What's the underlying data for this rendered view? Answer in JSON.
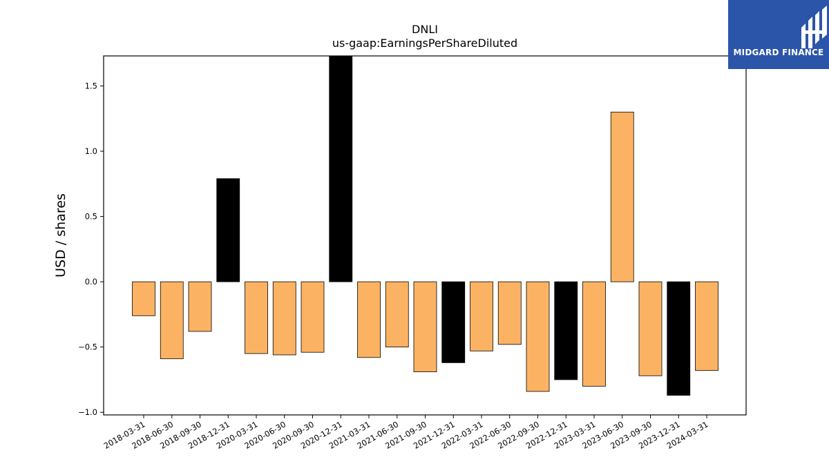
{
  "logo": {
    "text": "MIDGARD FINANCE",
    "bg_color": "#2b55a8"
  },
  "chart_data": {
    "type": "bar",
    "title": "DNLI",
    "subtitle": "us-gaap:EarningsPerShareDiluted",
    "xlabel": "",
    "ylabel": "USD / shares",
    "ylim": [
      -1.02,
      1.73
    ],
    "yticks": [
      -1.0,
      -0.5,
      0.0,
      0.5,
      1.0,
      1.5
    ],
    "ytick_labels": [
      "−1.0",
      "−0.5",
      "0.0",
      "0.5",
      "1.0",
      "1.5"
    ],
    "grid": false,
    "legend": "none",
    "colors": {
      "quarter": "#fbb363",
      "annual": "#000000"
    },
    "categories": [
      "2018-03-31",
      "2018-06-30",
      "2018-09-30",
      "2018-12-31",
      "2020-03-31",
      "2020-06-30",
      "2020-09-30",
      "2020-12-31",
      "2021-03-31",
      "2021-06-30",
      "2021-09-30",
      "2021-12-31",
      "2022-03-31",
      "2022-06-30",
      "2022-09-30",
      "2022-12-31",
      "2023-03-31",
      "2023-06-30",
      "2023-09-30",
      "2023-12-31",
      "2024-03-31"
    ],
    "values": [
      -0.26,
      -0.59,
      -0.38,
      0.79,
      -0.55,
      -0.56,
      -0.54,
      1.73,
      -0.58,
      -0.5,
      -0.69,
      -0.62,
      -0.53,
      -0.48,
      -0.84,
      -0.75,
      -0.8,
      1.3,
      -0.72,
      -0.87,
      -0.68
    ],
    "bar_kind": [
      "quarter",
      "quarter",
      "quarter",
      "annual",
      "quarter",
      "quarter",
      "quarter",
      "annual",
      "quarter",
      "quarter",
      "quarter",
      "annual",
      "quarter",
      "quarter",
      "quarter",
      "annual",
      "quarter",
      "quarter",
      "quarter",
      "annual",
      "quarter"
    ]
  }
}
